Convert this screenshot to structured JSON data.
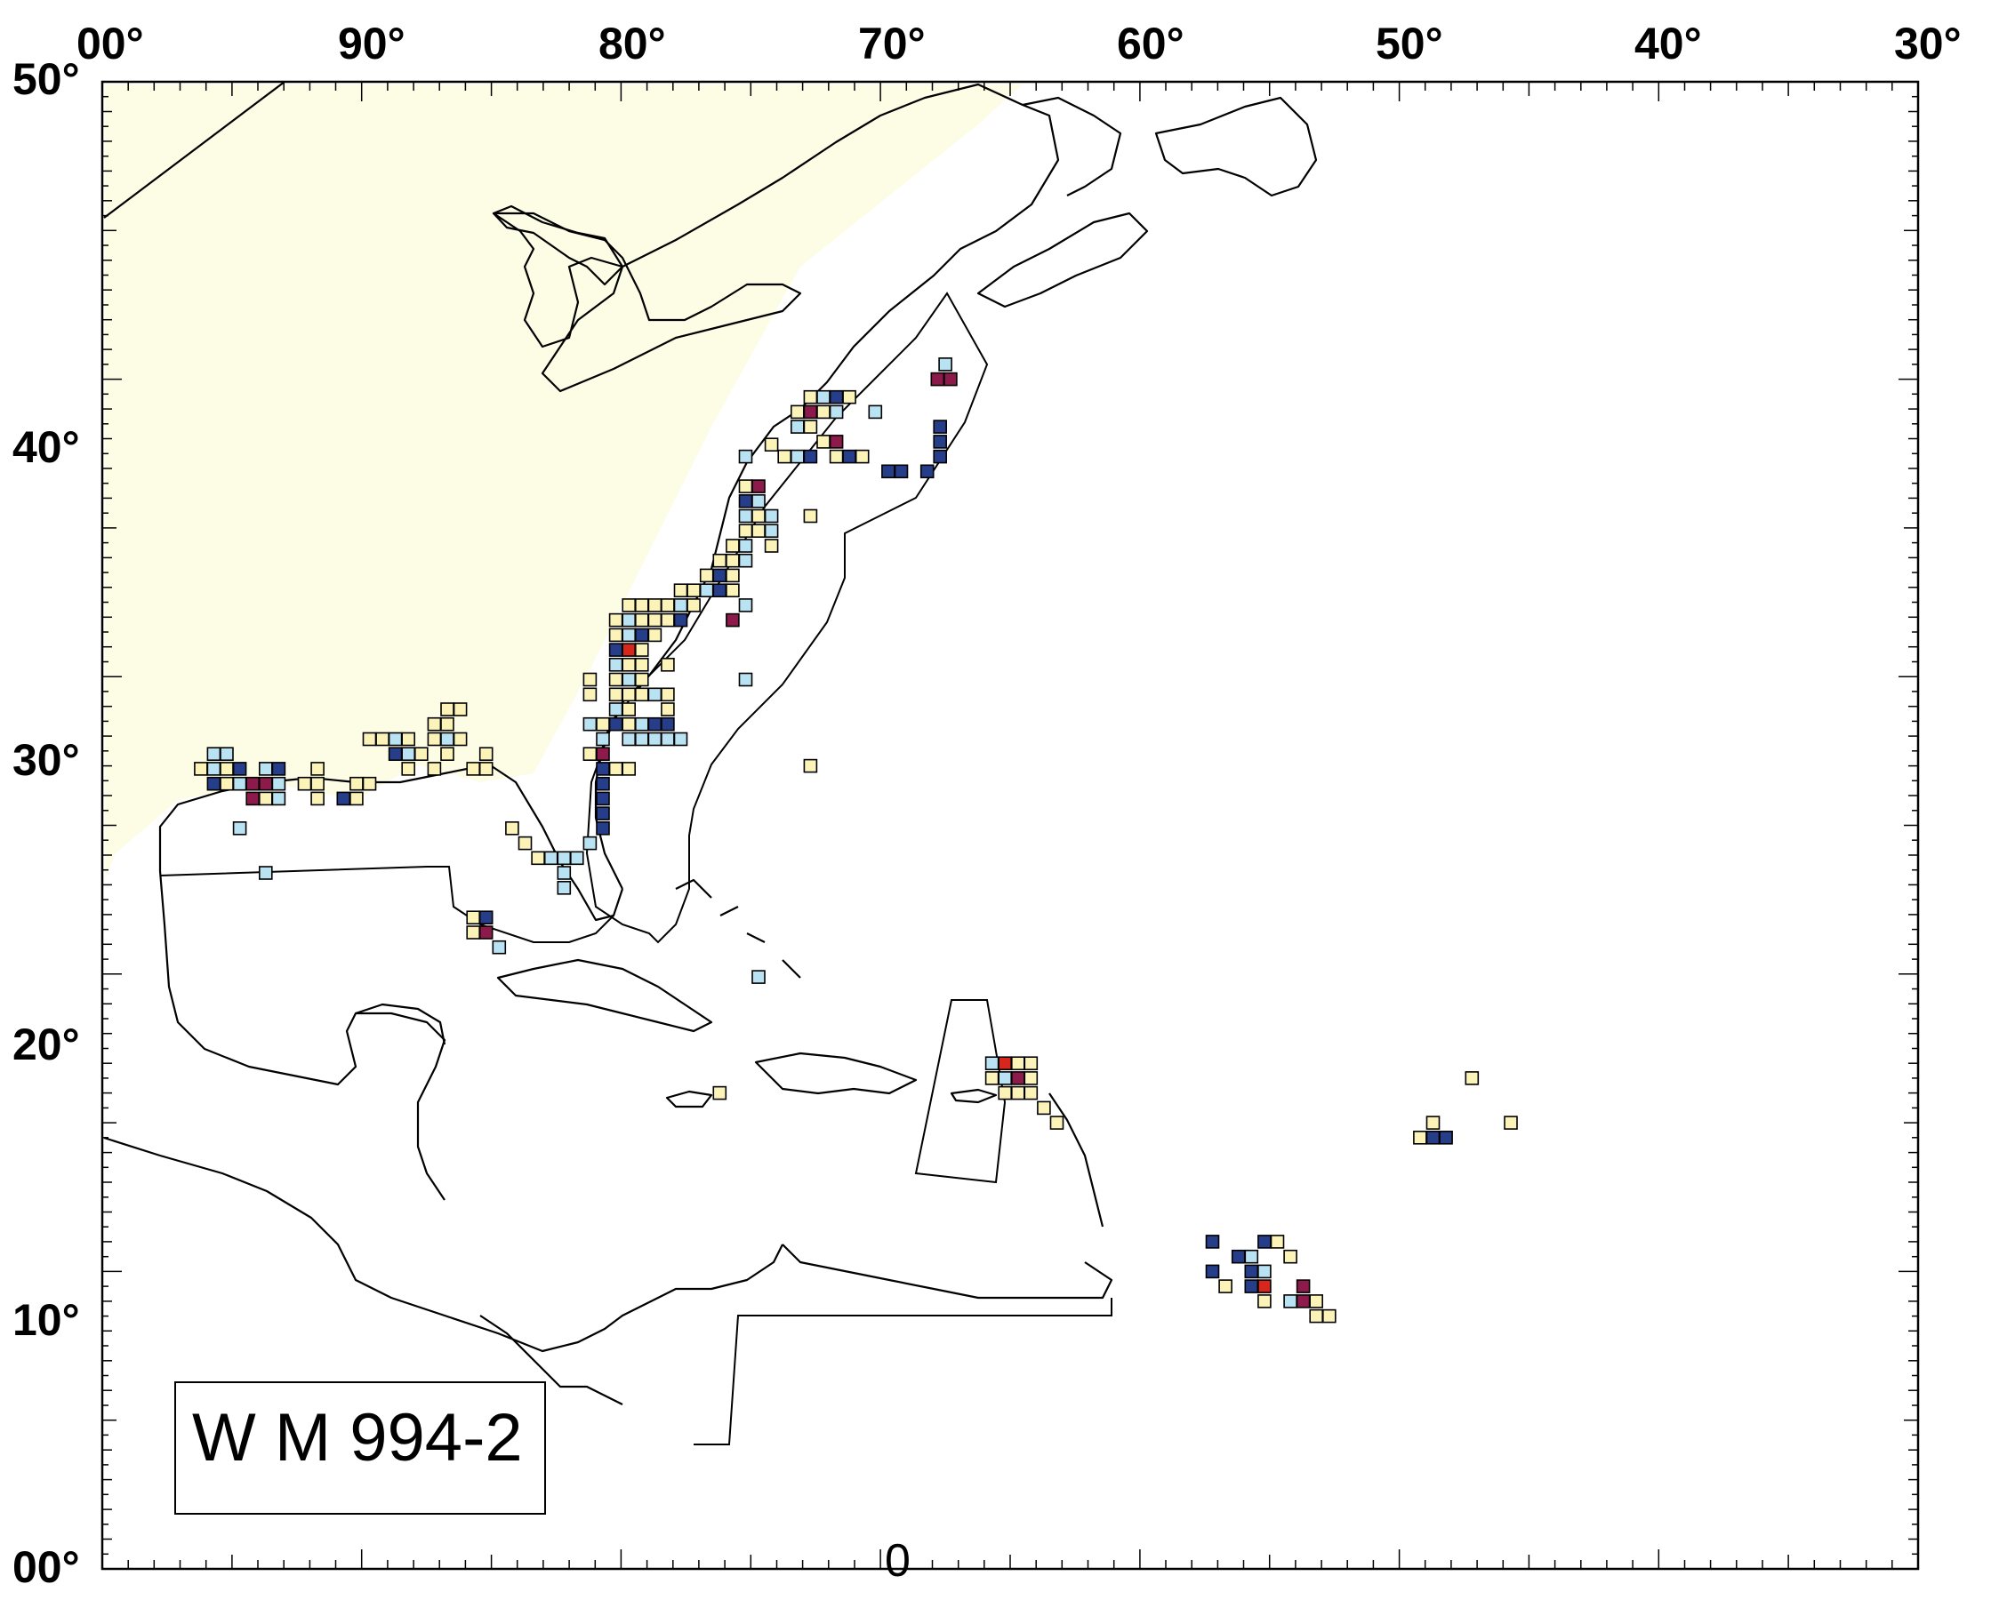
{
  "map": {
    "lon_labels": [
      "00°",
      "90°",
      "80°",
      "70°",
      "60°",
      "50°",
      "40°",
      "30°"
    ],
    "lat_labels": [
      "50°",
      "40°",
      "30°",
      "20°",
      "10°",
      "00°"
    ],
    "lon_range": [
      -100,
      -30
    ],
    "lat_range": [
      0,
      50
    ],
    "legend_label": "W M 994-2",
    "bottom_label": "0",
    "colors": {
      "pale_yellow": "#fbf3b8",
      "light_blue": "#b9e3f2",
      "dark_blue": "#263d8a",
      "maroon": "#8c1a4a",
      "red": "#d7261b",
      "land_tint": "#fdfbe0",
      "outline": "#000000"
    },
    "cells": [
      {
        "lon": -72.7,
        "lat": 39.4,
        "c": "yellow"
      },
      {
        "lon": -72.2,
        "lat": 39.4,
        "c": "light_blue"
      },
      {
        "lon": -71.7,
        "lat": 39.4,
        "c": "dark_blue"
      },
      {
        "lon": -71.2,
        "lat": 39.4,
        "c": "yellow"
      },
      {
        "lon": -72.2,
        "lat": 38.9,
        "c": "yellow"
      },
      {
        "lon": -72.7,
        "lat": 38.9,
        "c": "maroon"
      },
      {
        "lon": -73.2,
        "lat": 38.9,
        "c": "yellow"
      },
      {
        "lon": -71.7,
        "lat": 38.9,
        "c": "light_blue"
      },
      {
        "lon": -70.2,
        "lat": 38.9,
        "c": "light_blue"
      },
      {
        "lon": -67.5,
        "lat": 40.5,
        "c": "light_blue"
      },
      {
        "lon": -67.8,
        "lat": 40.0,
        "c": "maroon"
      },
      {
        "lon": -67.3,
        "lat": 40.0,
        "c": "maroon"
      },
      {
        "lon": -72.7,
        "lat": 38.4,
        "c": "yellow"
      },
      {
        "lon": -73.2,
        "lat": 38.4,
        "c": "light_blue"
      },
      {
        "lon": -72.2,
        "lat": 37.9,
        "c": "yellow"
      },
      {
        "lon": -71.7,
        "lat": 37.9,
        "c": "maroon"
      },
      {
        "lon": -73.7,
        "lat": 37.4,
        "c": "yellow"
      },
      {
        "lon": -73.2,
        "lat": 37.4,
        "c": "light_blue"
      },
      {
        "lon": -72.7,
        "lat": 37.4,
        "c": "dark_blue"
      },
      {
        "lon": -71.7,
        "lat": 37.4,
        "c": "yellow"
      },
      {
        "lon": -71.2,
        "lat": 37.4,
        "c": "dark_blue"
      },
      {
        "lon": -70.7,
        "lat": 37.4,
        "c": "yellow"
      },
      {
        "lon": -69.7,
        "lat": 36.9,
        "c": "dark_blue"
      },
      {
        "lon": -69.2,
        "lat": 36.9,
        "c": "dark_blue"
      },
      {
        "lon": -68.2,
        "lat": 36.9,
        "c": "dark_blue"
      },
      {
        "lon": -67.7,
        "lat": 37.4,
        "c": "dark_blue"
      },
      {
        "lon": -67.7,
        "lat": 37.9,
        "c": "dark_blue"
      },
      {
        "lon": -67.7,
        "lat": 38.4,
        "c": "dark_blue"
      },
      {
        "lon": -74.2,
        "lat": 37.8,
        "c": "yellow"
      },
      {
        "lon": -75.2,
        "lat": 37.4,
        "c": "light_blue"
      },
      {
        "lon": -75.2,
        "lat": 36.4,
        "c": "yellow"
      },
      {
        "lon": -74.7,
        "lat": 36.4,
        "c": "maroon"
      },
      {
        "lon": -75.2,
        "lat": 35.9,
        "c": "dark_blue"
      },
      {
        "lon": -74.7,
        "lat": 35.9,
        "c": "light_blue"
      },
      {
        "lon": -75.2,
        "lat": 35.4,
        "c": "light_blue"
      },
      {
        "lon": -74.7,
        "lat": 35.4,
        "c": "yellow"
      },
      {
        "lon": -74.2,
        "lat": 35.4,
        "c": "light_blue"
      },
      {
        "lon": -72.7,
        "lat": 35.4,
        "c": "yellow"
      },
      {
        "lon": -74.7,
        "lat": 34.9,
        "c": "yellow"
      },
      {
        "lon": -74.2,
        "lat": 34.9,
        "c": "light_blue"
      },
      {
        "lon": -75.2,
        "lat": 34.9,
        "c": "yellow"
      },
      {
        "lon": -75.7,
        "lat": 34.4,
        "c": "yellow"
      },
      {
        "lon": -75.2,
        "lat": 34.4,
        "c": "light_blue"
      },
      {
        "lon": -74.2,
        "lat": 34.4,
        "c": "yellow"
      },
      {
        "lon": -75.7,
        "lat": 33.9,
        "c": "yellow"
      },
      {
        "lon": -76.2,
        "lat": 33.9,
        "c": "yellow"
      },
      {
        "lon": -75.2,
        "lat": 33.9,
        "c": "light_blue"
      },
      {
        "lon": -76.2,
        "lat": 33.4,
        "c": "dark_blue"
      },
      {
        "lon": -76.7,
        "lat": 33.4,
        "c": "yellow"
      },
      {
        "lon": -75.7,
        "lat": 33.4,
        "c": "yellow"
      },
      {
        "lon": -76.2,
        "lat": 32.9,
        "c": "dark_blue"
      },
      {
        "lon": -76.7,
        "lat": 32.9,
        "c": "light_blue"
      },
      {
        "lon": -77.2,
        "lat": 32.9,
        "c": "yellow"
      },
      {
        "lon": -77.7,
        "lat": 32.9,
        "c": "yellow"
      },
      {
        "lon": -75.7,
        "lat": 32.9,
        "c": "yellow"
      },
      {
        "lon": -78.2,
        "lat": 32.4,
        "c": "yellow"
      },
      {
        "lon": -77.7,
        "lat": 32.4,
        "c": "light_blue"
      },
      {
        "lon": -77.2,
        "lat": 32.4,
        "c": "yellow"
      },
      {
        "lon": -78.7,
        "lat": 32.4,
        "c": "yellow"
      },
      {
        "lon": -79.7,
        "lat": 32.4,
        "c": "yellow"
      },
      {
        "lon": -79.2,
        "lat": 32.4,
        "c": "yellow"
      },
      {
        "lon": -75.2,
        "lat": 32.4,
        "c": "light_blue"
      },
      {
        "lon": -75.7,
        "lat": 31.9,
        "c": "maroon"
      },
      {
        "lon": -77.7,
        "lat": 31.9,
        "c": "dark_blue"
      },
      {
        "lon": -78.2,
        "lat": 31.9,
        "c": "yellow"
      },
      {
        "lon": -79.2,
        "lat": 31.9,
        "c": "yellow"
      },
      {
        "lon": -79.7,
        "lat": 31.9,
        "c": "light_blue"
      },
      {
        "lon": -78.7,
        "lat": 31.9,
        "c": "yellow"
      },
      {
        "lon": -80.2,
        "lat": 31.9,
        "c": "yellow"
      },
      {
        "lon": -79.2,
        "lat": 31.4,
        "c": "dark_blue"
      },
      {
        "lon": -79.7,
        "lat": 31.4,
        "c": "light_blue"
      },
      {
        "lon": -78.7,
        "lat": 31.4,
        "c": "yellow"
      },
      {
        "lon": -80.2,
        "lat": 31.4,
        "c": "yellow"
      },
      {
        "lon": -79.7,
        "lat": 30.9,
        "c": "red"
      },
      {
        "lon": -80.2,
        "lat": 30.9,
        "c": "dark_blue"
      },
      {
        "lon": -79.2,
        "lat": 30.9,
        "c": "yellow"
      },
      {
        "lon": -80.2,
        "lat": 30.4,
        "c": "light_blue"
      },
      {
        "lon": -79.7,
        "lat": 30.4,
        "c": "yellow"
      },
      {
        "lon": -79.2,
        "lat": 30.4,
        "c": "yellow"
      },
      {
        "lon": -78.2,
        "lat": 30.4,
        "c": "yellow"
      },
      {
        "lon": -80.2,
        "lat": 29.9,
        "c": "yellow"
      },
      {
        "lon": -79.7,
        "lat": 29.9,
        "c": "light_blue"
      },
      {
        "lon": -79.2,
        "lat": 29.9,
        "c": "yellow"
      },
      {
        "lon": -75.2,
        "lat": 29.9,
        "c": "light_blue"
      },
      {
        "lon": -81.2,
        "lat": 29.9,
        "c": "yellow"
      },
      {
        "lon": -81.2,
        "lat": 29.4,
        "c": "yellow"
      },
      {
        "lon": -79.7,
        "lat": 29.4,
        "c": "yellow"
      },
      {
        "lon": -79.2,
        "lat": 29.4,
        "c": "yellow"
      },
      {
        "lon": -78.7,
        "lat": 29.4,
        "c": "light_blue"
      },
      {
        "lon": -78.2,
        "lat": 29.4,
        "c": "yellow"
      },
      {
        "lon": -80.2,
        "lat": 29.4,
        "c": "yellow"
      },
      {
        "lon": -80.2,
        "lat": 28.9,
        "c": "light_blue"
      },
      {
        "lon": -79.7,
        "lat": 28.9,
        "c": "yellow"
      },
      {
        "lon": -78.2,
        "lat": 28.9,
        "c": "yellow"
      },
      {
        "lon": -80.7,
        "lat": 28.4,
        "c": "yellow"
      },
      {
        "lon": -81.2,
        "lat": 28.4,
        "c": "light_blue"
      },
      {
        "lon": -80.2,
        "lat": 28.4,
        "c": "dark_blue"
      },
      {
        "lon": -79.7,
        "lat": 28.4,
        "c": "yellow"
      },
      {
        "lon": -79.2,
        "lat": 28.4,
        "c": "light_blue"
      },
      {
        "lon": -78.7,
        "lat": 28.4,
        "c": "dark_blue"
      },
      {
        "lon": -78.2,
        "lat": 28.4,
        "c": "dark_blue"
      },
      {
        "lon": -80.7,
        "lat": 27.9,
        "c": "light_blue"
      },
      {
        "lon": -79.7,
        "lat": 27.9,
        "c": "light_blue"
      },
      {
        "lon": -79.2,
        "lat": 27.9,
        "c": "light_blue"
      },
      {
        "lon": -78.7,
        "lat": 27.9,
        "c": "light_blue"
      },
      {
        "lon": -78.2,
        "lat": 27.9,
        "c": "light_blue"
      },
      {
        "lon": -77.7,
        "lat": 27.9,
        "c": "light_blue"
      },
      {
        "lon": -80.7,
        "lat": 27.4,
        "c": "maroon"
      },
      {
        "lon": -81.2,
        "lat": 27.4,
        "c": "yellow"
      },
      {
        "lon": -80.2,
        "lat": 26.9,
        "c": "yellow"
      },
      {
        "lon": -80.7,
        "lat": 26.9,
        "c": "dark_blue"
      },
      {
        "lon": -79.7,
        "lat": 26.9,
        "c": "yellow"
      },
      {
        "lon": -80.7,
        "lat": 26.4,
        "c": "dark_blue"
      },
      {
        "lon": -80.7,
        "lat": 25.9,
        "c": "dark_blue"
      },
      {
        "lon": -80.7,
        "lat": 25.4,
        "c": "dark_blue"
      },
      {
        "lon": -80.7,
        "lat": 24.9,
        "c": "dark_blue"
      },
      {
        "lon": -81.2,
        "lat": 24.4,
        "c": "light_blue"
      },
      {
        "lon": -72.7,
        "lat": 27.0,
        "c": "yellow"
      },
      {
        "lon": -86.7,
        "lat": 28.9,
        "c": "yellow"
      },
      {
        "lon": -86.2,
        "lat": 28.9,
        "c": "yellow"
      },
      {
        "lon": -86.7,
        "lat": 28.4,
        "c": "yellow"
      },
      {
        "lon": -87.2,
        "lat": 28.4,
        "c": "yellow"
      },
      {
        "lon": -86.7,
        "lat": 27.9,
        "c": "light_blue"
      },
      {
        "lon": -87.2,
        "lat": 27.9,
        "c": "yellow"
      },
      {
        "lon": -86.2,
        "lat": 27.9,
        "c": "yellow"
      },
      {
        "lon": -88.2,
        "lat": 27.9,
        "c": "yellow"
      },
      {
        "lon": -88.7,
        "lat": 27.9,
        "c": "light_blue"
      },
      {
        "lon": -89.2,
        "lat": 27.9,
        "c": "yellow"
      },
      {
        "lon": -89.7,
        "lat": 27.9,
        "c": "yellow"
      },
      {
        "lon": -88.7,
        "lat": 27.4,
        "c": "dark_blue"
      },
      {
        "lon": -88.2,
        "lat": 27.4,
        "c": "light_blue"
      },
      {
        "lon": -87.7,
        "lat": 27.4,
        "c": "yellow"
      },
      {
        "lon": -86.7,
        "lat": 27.4,
        "c": "yellow"
      },
      {
        "lon": -85.2,
        "lat": 27.4,
        "c": "yellow"
      },
      {
        "lon": -88.2,
        "lat": 26.9,
        "c": "yellow"
      },
      {
        "lon": -87.2,
        "lat": 26.9,
        "c": "yellow"
      },
      {
        "lon": -85.7,
        "lat": 26.9,
        "c": "yellow"
      },
      {
        "lon": -85.2,
        "lat": 26.9,
        "c": "yellow"
      },
      {
        "lon": -95.7,
        "lat": 27.4,
        "c": "light_blue"
      },
      {
        "lon": -95.2,
        "lat": 27.4,
        "c": "light_blue"
      },
      {
        "lon": -96.2,
        "lat": 26.9,
        "c": "yellow"
      },
      {
        "lon": -95.7,
        "lat": 26.9,
        "c": "light_blue"
      },
      {
        "lon": -95.2,
        "lat": 26.9,
        "c": "yellow"
      },
      {
        "lon": -94.7,
        "lat": 26.9,
        "c": "dark_blue"
      },
      {
        "lon": -93.7,
        "lat": 26.9,
        "c": "light_blue"
      },
      {
        "lon": -93.2,
        "lat": 26.9,
        "c": "dark_blue"
      },
      {
        "lon": -91.7,
        "lat": 26.9,
        "c": "yellow"
      },
      {
        "lon": -95.7,
        "lat": 26.4,
        "c": "dark_blue"
      },
      {
        "lon": -95.2,
        "lat": 26.4,
        "c": "yellow"
      },
      {
        "lon": -94.7,
        "lat": 26.4,
        "c": "light_blue"
      },
      {
        "lon": -94.2,
        "lat": 26.4,
        "c": "maroon"
      },
      {
        "lon": -93.7,
        "lat": 26.4,
        "c": "maroon"
      },
      {
        "lon": -93.2,
        "lat": 26.4,
        "c": "light_blue"
      },
      {
        "lon": -92.2,
        "lat": 26.4,
        "c": "yellow"
      },
      {
        "lon": -91.7,
        "lat": 26.4,
        "c": "yellow"
      },
      {
        "lon": -90.2,
        "lat": 26.4,
        "c": "yellow"
      },
      {
        "lon": -89.7,
        "lat": 26.4,
        "c": "yellow"
      },
      {
        "lon": -94.2,
        "lat": 25.9,
        "c": "maroon"
      },
      {
        "lon": -93.7,
        "lat": 25.9,
        "c": "yellow"
      },
      {
        "lon": -93.2,
        "lat": 25.9,
        "c": "light_blue"
      },
      {
        "lon": -91.7,
        "lat": 25.9,
        "c": "yellow"
      },
      {
        "lon": -90.7,
        "lat": 25.9,
        "c": "dark_blue"
      },
      {
        "lon": -90.2,
        "lat": 25.9,
        "c": "yellow"
      },
      {
        "lon": -94.7,
        "lat": 24.9,
        "c": "light_blue"
      },
      {
        "lon": -93.7,
        "lat": 23.4,
        "c": "light_blue"
      },
      {
        "lon": -84.2,
        "lat": 24.9,
        "c": "yellow"
      },
      {
        "lon": -83.7,
        "lat": 24.4,
        "c": "yellow"
      },
      {
        "lon": -83.2,
        "lat": 23.9,
        "c": "yellow"
      },
      {
        "lon": -82.7,
        "lat": 23.9,
        "c": "light_blue"
      },
      {
        "lon": -82.2,
        "lat": 23.9,
        "c": "light_blue"
      },
      {
        "lon": -81.7,
        "lat": 23.9,
        "c": "light_blue"
      },
      {
        "lon": -82.2,
        "lat": 23.4,
        "c": "light_blue"
      },
      {
        "lon": -82.2,
        "lat": 22.9,
        "c": "light_blue"
      },
      {
        "lon": -85.7,
        "lat": 21.9,
        "c": "yellow"
      },
      {
        "lon": -85.2,
        "lat": 21.9,
        "c": "dark_blue"
      },
      {
        "lon": -85.7,
        "lat": 21.4,
        "c": "yellow"
      },
      {
        "lon": -85.2,
        "lat": 21.4,
        "c": "maroon"
      },
      {
        "lon": -84.7,
        "lat": 20.9,
        "c": "light_blue"
      },
      {
        "lon": -74.7,
        "lat": 19.9,
        "c": "light_blue"
      },
      {
        "lon": -76.2,
        "lat": 16.0,
        "c": "yellow"
      },
      {
        "lon": -65.7,
        "lat": 17.0,
        "c": "light_blue"
      },
      {
        "lon": -65.2,
        "lat": 17.0,
        "c": "red"
      },
      {
        "lon": -64.7,
        "lat": 17.0,
        "c": "yellow"
      },
      {
        "lon": -64.2,
        "lat": 17.0,
        "c": "yellow"
      },
      {
        "lon": -65.7,
        "lat": 16.5,
        "c": "yellow"
      },
      {
        "lon": -65.2,
        "lat": 16.5,
        "c": "light_blue"
      },
      {
        "lon": -64.7,
        "lat": 16.5,
        "c": "maroon"
      },
      {
        "lon": -64.2,
        "lat": 16.5,
        "c": "yellow"
      },
      {
        "lon": -65.2,
        "lat": 16.0,
        "c": "yellow"
      },
      {
        "lon": -64.7,
        "lat": 16.0,
        "c": "yellow"
      },
      {
        "lon": -64.2,
        "lat": 16.0,
        "c": "yellow"
      },
      {
        "lon": -63.7,
        "lat": 15.5,
        "c": "yellow"
      },
      {
        "lon": -63.2,
        "lat": 15.0,
        "c": "yellow"
      },
      {
        "lon": -48.7,
        "lat": 15.0,
        "c": "yellow"
      },
      {
        "lon": -49.2,
        "lat": 14.5,
        "c": "yellow"
      },
      {
        "lon": -48.7,
        "lat": 14.5,
        "c": "dark_blue"
      },
      {
        "lon": -48.2,
        "lat": 14.5,
        "c": "dark_blue"
      },
      {
        "lon": -47.2,
        "lat": 16.5,
        "c": "yellow"
      },
      {
        "lon": -45.7,
        "lat": 15.0,
        "c": "yellow"
      },
      {
        "lon": -57.2,
        "lat": 11.0,
        "c": "dark_blue"
      },
      {
        "lon": -56.2,
        "lat": 10.5,
        "c": "dark_blue"
      },
      {
        "lon": -55.7,
        "lat": 10.5,
        "c": "light_blue"
      },
      {
        "lon": -55.2,
        "lat": 11.0,
        "c": "dark_blue"
      },
      {
        "lon": -54.7,
        "lat": 11.0,
        "c": "yellow"
      },
      {
        "lon": -54.2,
        "lat": 10.5,
        "c": "yellow"
      },
      {
        "lon": -57.2,
        "lat": 10.0,
        "c": "dark_blue"
      },
      {
        "lon": -56.7,
        "lat": 9.5,
        "c": "yellow"
      },
      {
        "lon": -55.7,
        "lat": 10.0,
        "c": "dark_blue"
      },
      {
        "lon": -55.2,
        "lat": 10.0,
        "c": "light_blue"
      },
      {
        "lon": -55.7,
        "lat": 9.5,
        "c": "dark_blue"
      },
      {
        "lon": -55.2,
        "lat": 9.5,
        "c": "red"
      },
      {
        "lon": -55.2,
        "lat": 9.0,
        "c": "yellow"
      },
      {
        "lon": -54.2,
        "lat": 9.0,
        "c": "light_blue"
      },
      {
        "lon": -53.7,
        "lat": 9.5,
        "c": "maroon"
      },
      {
        "lon": -53.7,
        "lat": 9.0,
        "c": "maroon"
      },
      {
        "lon": -53.2,
        "lat": 9.0,
        "c": "yellow"
      },
      {
        "lon": -53.2,
        "lat": 8.5,
        "c": "yellow"
      },
      {
        "lon": -52.7,
        "lat": 8.5,
        "c": "yellow"
      }
    ]
  }
}
